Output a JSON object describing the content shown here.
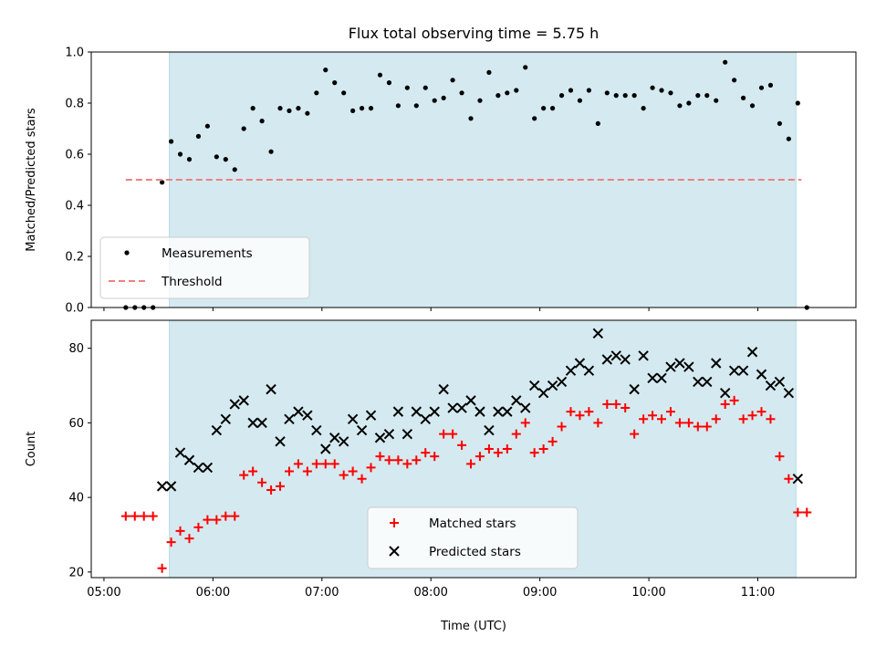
{
  "figure": {
    "title": "Flux total observing time = 5.75 h",
    "shade_color": "#d4eaf0",
    "shade_edge": "#b8dce6"
  },
  "chart_data": [
    {
      "type": "scatter",
      "title": "Flux total observing time = 5.75 h",
      "xlabel": "",
      "ylabel": "Matched/Predicted stars",
      "xlim": [
        "04:53",
        "11:54"
      ],
      "ylim": [
        0,
        1.0
      ],
      "yticks": [
        0.0,
        0.2,
        0.4,
        0.6,
        0.8,
        1.0
      ],
      "ytick_labels": [
        "0.0",
        "0.2",
        "0.4",
        "0.6",
        "0.8",
        "1.0"
      ],
      "xticks": [
        "05:00",
        "06:00",
        "07:00",
        "08:00",
        "09:00",
        "10:00",
        "11:00"
      ],
      "shaded_region": [
        "05:36",
        "11:21"
      ],
      "legend_position": "lower-left",
      "series": [
        {
          "name": "Measurements",
          "marker": "dot",
          "color": "#000000",
          "points": [
            [
              "05:12",
              0.0
            ],
            [
              "05:17",
              0.0
            ],
            [
              "05:22",
              0.0
            ],
            [
              "05:27",
              0.0
            ],
            [
              "05:32",
              0.49
            ],
            [
              "05:37",
              0.65
            ],
            [
              "05:42",
              0.6
            ],
            [
              "05:47",
              0.58
            ],
            [
              "05:52",
              0.67
            ],
            [
              "05:57",
              0.71
            ],
            [
              "06:02",
              0.59
            ],
            [
              "06:07",
              0.58
            ],
            [
              "06:12",
              0.54
            ],
            [
              "06:17",
              0.7
            ],
            [
              "06:22",
              0.78
            ],
            [
              "06:27",
              0.73
            ],
            [
              "06:32",
              0.61
            ],
            [
              "06:37",
              0.78
            ],
            [
              "06:42",
              0.77
            ],
            [
              "06:47",
              0.78
            ],
            [
              "06:52",
              0.76
            ],
            [
              "06:57",
              0.84
            ],
            [
              "07:02",
              0.93
            ],
            [
              "07:07",
              0.88
            ],
            [
              "07:12",
              0.84
            ],
            [
              "07:17",
              0.77
            ],
            [
              "07:22",
              0.78
            ],
            [
              "07:27",
              0.78
            ],
            [
              "07:32",
              0.91
            ],
            [
              "07:37",
              0.88
            ],
            [
              "07:42",
              0.79
            ],
            [
              "07:47",
              0.86
            ],
            [
              "07:52",
              0.79
            ],
            [
              "07:57",
              0.86
            ],
            [
              "08:02",
              0.81
            ],
            [
              "08:07",
              0.82
            ],
            [
              "08:12",
              0.89
            ],
            [
              "08:17",
              0.84
            ],
            [
              "08:22",
              0.74
            ],
            [
              "08:27",
              0.81
            ],
            [
              "08:32",
              0.92
            ],
            [
              "08:37",
              0.83
            ],
            [
              "08:42",
              0.84
            ],
            [
              "08:47",
              0.85
            ],
            [
              "08:52",
              0.94
            ],
            [
              "08:57",
              0.74
            ],
            [
              "09:02",
              0.78
            ],
            [
              "09:07",
              0.78
            ],
            [
              "09:12",
              0.83
            ],
            [
              "09:17",
              0.85
            ],
            [
              "09:22",
              0.81
            ],
            [
              "09:27",
              0.85
            ],
            [
              "09:32",
              0.72
            ],
            [
              "09:37",
              0.84
            ],
            [
              "09:42",
              0.83
            ],
            [
              "09:47",
              0.83
            ],
            [
              "09:52",
              0.83
            ],
            [
              "09:57",
              0.78
            ],
            [
              "10:02",
              0.86
            ],
            [
              "10:07",
              0.85
            ],
            [
              "10:12",
              0.84
            ],
            [
              "10:17",
              0.79
            ],
            [
              "10:22",
              0.8
            ],
            [
              "10:27",
              0.83
            ],
            [
              "10:32",
              0.83
            ],
            [
              "10:37",
              0.81
            ],
            [
              "10:42",
              0.96
            ],
            [
              "10:47",
              0.89
            ],
            [
              "10:52",
              0.82
            ],
            [
              "10:57",
              0.79
            ],
            [
              "11:02",
              0.86
            ],
            [
              "11:07",
              0.87
            ],
            [
              "11:12",
              0.72
            ],
            [
              "11:17",
              0.66
            ],
            [
              "11:22",
              0.8
            ],
            [
              "11:27",
              0.0
            ]
          ]
        },
        {
          "name": "Threshold",
          "marker": "dashed-line",
          "color": "#f08080",
          "points": [
            [
              "05:12",
              0.5
            ],
            [
              "11:24",
              0.5
            ]
          ]
        }
      ]
    },
    {
      "type": "scatter",
      "title": "",
      "xlabel": "Time (UTC)",
      "ylabel": "Count",
      "xlim": [
        "04:53",
        "11:54"
      ],
      "ylim": [
        18.5,
        87.5
      ],
      "yticks": [
        20,
        40,
        60,
        80
      ],
      "ytick_labels": [
        "20",
        "40",
        "60",
        "80"
      ],
      "xticks": [
        "05:00",
        "06:00",
        "07:00",
        "08:00",
        "09:00",
        "10:00",
        "11:00"
      ],
      "xtick_labels": [
        "05:00",
        "06:00",
        "07:00",
        "08:00",
        "09:00",
        "10:00",
        "11:00"
      ],
      "shaded_region": [
        "05:36",
        "11:21"
      ],
      "legend_position": "lower-center",
      "series": [
        {
          "name": "Matched stars",
          "marker": "plus",
          "color": "#ff0000",
          "points": [
            [
              "05:12",
              35
            ],
            [
              "05:17",
              35
            ],
            [
              "05:22",
              35
            ],
            [
              "05:27",
              35
            ],
            [
              "05:32",
              21
            ],
            [
              "05:37",
              28
            ],
            [
              "05:42",
              31
            ],
            [
              "05:47",
              29
            ],
            [
              "05:52",
              32
            ],
            [
              "05:57",
              34
            ],
            [
              "06:02",
              34
            ],
            [
              "06:07",
              35
            ],
            [
              "06:12",
              35
            ],
            [
              "06:17",
              46
            ],
            [
              "06:22",
              47
            ],
            [
              "06:27",
              44
            ],
            [
              "06:32",
              42
            ],
            [
              "06:37",
              43
            ],
            [
              "06:42",
              47
            ],
            [
              "06:47",
              49
            ],
            [
              "06:52",
              47
            ],
            [
              "06:57",
              49
            ],
            [
              "07:02",
              49
            ],
            [
              "07:07",
              49
            ],
            [
              "07:12",
              46
            ],
            [
              "07:17",
              47
            ],
            [
              "07:22",
              45
            ],
            [
              "07:27",
              48
            ],
            [
              "07:32",
              51
            ],
            [
              "07:37",
              50
            ],
            [
              "07:42",
              50
            ],
            [
              "07:47",
              49
            ],
            [
              "07:52",
              50
            ],
            [
              "07:57",
              52
            ],
            [
              "08:02",
              51
            ],
            [
              "08:07",
              57
            ],
            [
              "08:12",
              57
            ],
            [
              "08:17",
              54
            ],
            [
              "08:22",
              49
            ],
            [
              "08:27",
              51
            ],
            [
              "08:32",
              53
            ],
            [
              "08:37",
              52
            ],
            [
              "08:42",
              53
            ],
            [
              "08:47",
              57
            ],
            [
              "08:52",
              60
            ],
            [
              "08:57",
              52
            ],
            [
              "09:02",
              53
            ],
            [
              "09:07",
              55
            ],
            [
              "09:12",
              59
            ],
            [
              "09:17",
              63
            ],
            [
              "09:22",
              62
            ],
            [
              "09:27",
              63
            ],
            [
              "09:32",
              60
            ],
            [
              "09:37",
              65
            ],
            [
              "09:42",
              65
            ],
            [
              "09:47",
              64
            ],
            [
              "09:52",
              57
            ],
            [
              "09:57",
              61
            ],
            [
              "10:02",
              62
            ],
            [
              "10:07",
              61
            ],
            [
              "10:12",
              63
            ],
            [
              "10:17",
              60
            ],
            [
              "10:22",
              60
            ],
            [
              "10:27",
              59
            ],
            [
              "10:32",
              59
            ],
            [
              "10:37",
              61
            ],
            [
              "10:42",
              65
            ],
            [
              "10:47",
              66
            ],
            [
              "10:52",
              61
            ],
            [
              "10:57",
              62
            ],
            [
              "11:02",
              63
            ],
            [
              "11:07",
              61
            ],
            [
              "11:12",
              51
            ],
            [
              "11:17",
              45
            ],
            [
              "11:22",
              36
            ],
            [
              "11:27",
              36
            ]
          ]
        },
        {
          "name": "Predicted stars",
          "marker": "x",
          "color": "#000000",
          "points": [
            [
              "05:32",
              43
            ],
            [
              "05:37",
              43
            ],
            [
              "05:42",
              52
            ],
            [
              "05:47",
              50
            ],
            [
              "05:52",
              48
            ],
            [
              "05:57",
              48
            ],
            [
              "06:02",
              58
            ],
            [
              "06:07",
              61
            ],
            [
              "06:12",
              65
            ],
            [
              "06:17",
              66
            ],
            [
              "06:22",
              60
            ],
            [
              "06:27",
              60
            ],
            [
              "06:32",
              69
            ],
            [
              "06:37",
              55
            ],
            [
              "06:42",
              61
            ],
            [
              "06:47",
              63
            ],
            [
              "06:52",
              62
            ],
            [
              "06:57",
              58
            ],
            [
              "07:02",
              53
            ],
            [
              "07:07",
              56
            ],
            [
              "07:12",
              55
            ],
            [
              "07:17",
              61
            ],
            [
              "07:22",
              58
            ],
            [
              "07:27",
              62
            ],
            [
              "07:32",
              56
            ],
            [
              "07:37",
              57
            ],
            [
              "07:42",
              63
            ],
            [
              "07:47",
              57
            ],
            [
              "07:52",
              63
            ],
            [
              "07:57",
              61
            ],
            [
              "08:02",
              63
            ],
            [
              "08:07",
              69
            ],
            [
              "08:12",
              64
            ],
            [
              "08:17",
              64
            ],
            [
              "08:22",
              66
            ],
            [
              "08:27",
              63
            ],
            [
              "08:32",
              58
            ],
            [
              "08:37",
              63
            ],
            [
              "08:42",
              63
            ],
            [
              "08:47",
              66
            ],
            [
              "08:52",
              64
            ],
            [
              "08:57",
              70
            ],
            [
              "09:02",
              68
            ],
            [
              "09:07",
              70
            ],
            [
              "09:12",
              71
            ],
            [
              "09:17",
              74
            ],
            [
              "09:22",
              76
            ],
            [
              "09:27",
              74
            ],
            [
              "09:32",
              84
            ],
            [
              "09:37",
              77
            ],
            [
              "09:42",
              78
            ],
            [
              "09:47",
              77
            ],
            [
              "09:52",
              69
            ],
            [
              "09:57",
              78
            ],
            [
              "10:02",
              72
            ],
            [
              "10:07",
              72
            ],
            [
              "10:12",
              75
            ],
            [
              "10:17",
              76
            ],
            [
              "10:22",
              75
            ],
            [
              "10:27",
              71
            ],
            [
              "10:32",
              71
            ],
            [
              "10:37",
              76
            ],
            [
              "10:42",
              68
            ],
            [
              "10:47",
              74
            ],
            [
              "10:52",
              74
            ],
            [
              "10:57",
              79
            ],
            [
              "11:02",
              73
            ],
            [
              "11:07",
              70
            ],
            [
              "11:12",
              71
            ],
            [
              "11:17",
              68
            ],
            [
              "11:22",
              45
            ]
          ]
        }
      ]
    }
  ]
}
